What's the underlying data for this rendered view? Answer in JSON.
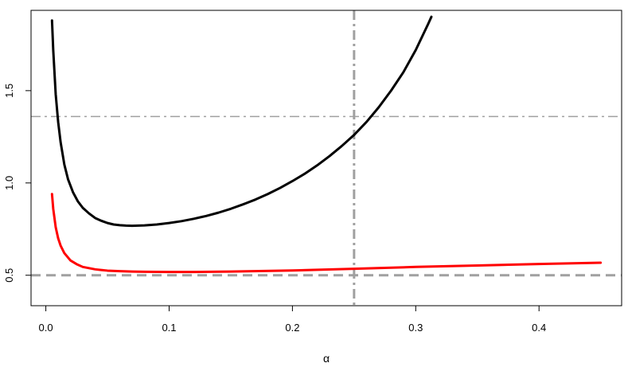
{
  "chart_data": {
    "type": "line",
    "title": "",
    "xlabel": "α",
    "ylabel": "",
    "xlim": [
      -0.012,
      0.467
    ],
    "ylim": [
      0.335,
      1.935
    ],
    "xticks": [
      "0.0",
      "0.1",
      "0.2",
      "0.3",
      "0.4"
    ],
    "xtick_values": [
      0.0,
      0.1,
      0.2,
      0.3,
      0.4
    ],
    "yticks": [
      "0.5",
      "1.0",
      "1.5"
    ],
    "ytick_values": [
      0.5,
      1.0,
      1.5
    ],
    "grid": false,
    "series": [
      {
        "color": "#000000",
        "style": "solid",
        "x": [
          0.005,
          0.006,
          0.008,
          0.01,
          0.012,
          0.015,
          0.018,
          0.022,
          0.026,
          0.03,
          0.035,
          0.04,
          0.045,
          0.05,
          0.055,
          0.06,
          0.065,
          0.07,
          0.08,
          0.09,
          0.1,
          0.11,
          0.12,
          0.13,
          0.14,
          0.15,
          0.16,
          0.17,
          0.18,
          0.19,
          0.2,
          0.21,
          0.22,
          0.23,
          0.24,
          0.25,
          0.26,
          0.27,
          0.28,
          0.29,
          0.3,
          0.31,
          0.3127
        ],
        "y": [
          1.88,
          1.72,
          1.48,
          1.33,
          1.22,
          1.1,
          1.02,
          0.95,
          0.9,
          0.865,
          0.835,
          0.81,
          0.795,
          0.783,
          0.775,
          0.771,
          0.769,
          0.768,
          0.77,
          0.775,
          0.783,
          0.793,
          0.806,
          0.821,
          0.839,
          0.86,
          0.884,
          0.91,
          0.94,
          0.973,
          1.01,
          1.05,
          1.095,
          1.145,
          1.2,
          1.26,
          1.33,
          1.41,
          1.5,
          1.6,
          1.72,
          1.86,
          1.9
        ]
      },
      {
        "color": "#ff0000",
        "style": "solid",
        "x": [
          0.005,
          0.006,
          0.008,
          0.01,
          0.012,
          0.015,
          0.02,
          0.025,
          0.03,
          0.04,
          0.05,
          0.06,
          0.07,
          0.08,
          0.1,
          0.12,
          0.15,
          0.2,
          0.25,
          0.3,
          0.35,
          0.4,
          0.45
        ],
        "y": [
          0.94,
          0.86,
          0.76,
          0.7,
          0.66,
          0.62,
          0.58,
          0.56,
          0.545,
          0.532,
          0.525,
          0.522,
          0.52,
          0.519,
          0.518,
          0.518,
          0.52,
          0.526,
          0.535,
          0.545,
          0.553,
          0.561,
          0.568
        ]
      }
    ],
    "reference_lines": [
      {
        "orientation": "horizontal",
        "value": 0.5,
        "color": "#a0a0a0",
        "style": "dashed"
      },
      {
        "orientation": "horizontal",
        "value": 1.36,
        "color": "#a0a0a0",
        "style": "dashdot"
      },
      {
        "orientation": "vertical",
        "value": 0.25,
        "color": "#a0a0a0",
        "style": "dashdot"
      }
    ]
  }
}
